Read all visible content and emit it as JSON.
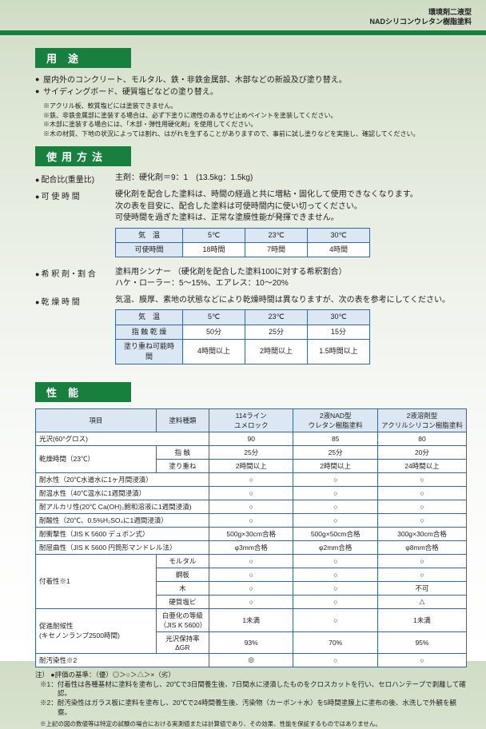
{
  "header": {
    "line1": "環境剤二液型",
    "line2": "NADシリコンウレタン樹脂塗料"
  },
  "sections": {
    "uses": {
      "title": "用途",
      "bullets": [
        "屋内外のコンクリート、モルタル、鉄・非鉄金属部、木部などの新設及び塗り替え。",
        "サイディングボード、硬質塩ビなどの塗り替え。"
      ],
      "notes": [
        "※アクリル板、軟質塩ビには塗装できません。",
        "※鉄、非鉄金属部に塗装する場合は、必ず下塗りに適性のあるサビ止めペイントを塗装してください。",
        "※木部に塗装する場合には、「木部・弾性用硬化剤」を使用してください。",
        "※木の材質、下地の状況によっては割れ、はがれを生ずることがありますので、事前に試し塗りなどを実施し、確認してください。"
      ]
    },
    "method": {
      "title": "使用方法",
      "ratio": {
        "label": "配合比(重量比)",
        "body": "主剤：硬化剤＝9：1　(13.5kg：1.5kg)"
      },
      "potlife": {
        "label": "可 使 時 間",
        "body1": "硬化剤を配合した塗料は、時間の経過と共に増粘・固化して使用できなくなります。",
        "body2": "次の表を目安に、配合した塗料は可使時間内に使い切ってください。",
        "body3": "可使時間を過ぎた塗料は、正常な塗膜性能が発揮できません。",
        "table": {
          "head": [
            "気　温",
            "5℃",
            "23℃",
            "30℃"
          ],
          "rows": [
            [
              "可使時間",
              "18時間",
              "7時間",
              "4時間"
            ]
          ]
        }
      },
      "thinner": {
        "label": "希 釈 剤・割 合",
        "body1": "塗料用シンナー （硬化剤を配合した塗料100に対する希釈割合）",
        "body2": "ハケ・ローラー：5～15%、エアレス：10～20%"
      },
      "dry": {
        "label": "乾 燥 時 間",
        "body": "気温、膜厚、素地の状態などにより乾燥時間は異なりますが、次の表を参考にしてください。",
        "table": {
          "head": [
            "気　温",
            "5℃",
            "23℃",
            "30℃"
          ],
          "rows": [
            [
              "指 触 乾 燥",
              "50分",
              "25分",
              "15分"
            ],
            [
              "塗り重ね可能時間",
              "4時間以上",
              "2時間以上",
              "1.5時間以上"
            ]
          ]
        }
      }
    },
    "perf": {
      "title": "性能",
      "header": {
        "item": "項目",
        "type": "塗料種類",
        "cols": [
          "114ライン\nユメロック",
          "2液NAD型\nウレタン樹脂塗料",
          "2液溶剤型\nアクリルシリコン樹脂塗料"
        ]
      },
      "rows": [
        {
          "label": "光沢(60°グロス)",
          "sub": null,
          "v": [
            "90",
            "85",
            "80"
          ]
        },
        {
          "label": "乾燥時間（23℃）",
          "sub": "指 触",
          "v": [
            "25分",
            "25分",
            "20分"
          ]
        },
        {
          "label": null,
          "sub": "塗り重ね",
          "v": [
            "2時間以上",
            "2時間以上",
            "24時間以上"
          ]
        },
        {
          "label": "耐水性（20℃水道水に1ヶ月間浸漬）",
          "sub": null,
          "v": [
            "○",
            "○",
            "○"
          ]
        },
        {
          "label": "耐温水性（40℃温水に1週間浸漬）",
          "sub": null,
          "v": [
            "○",
            "○",
            "○"
          ]
        },
        {
          "label": "耐アルカリ性(20℃ Ca(OH)₂飽和溶液に1週間浸漬)",
          "sub": null,
          "v": [
            "○",
            "○",
            "○"
          ]
        },
        {
          "label": "耐酸性（20℃、0.5%H₂SO₄に1週間浸漬）",
          "sub": null,
          "v": [
            "○",
            "○",
            "○"
          ]
        },
        {
          "label": "耐衝撃性（JIS K 5600 デュポン式）",
          "sub": null,
          "v": [
            "500g×30cm合格",
            "500g×50cm合格",
            "300g×30cm合格"
          ]
        },
        {
          "label": "耐屈曲性（JIS K 5600 円筒形マンドレル法）",
          "sub": null,
          "v": [
            "φ3mm合格",
            "φ2mm合格",
            "φ8mm合格"
          ]
        },
        {
          "label": "付着性※1",
          "sub": "モルタル",
          "v": [
            "○",
            "○",
            "○"
          ]
        },
        {
          "label": null,
          "sub": "鋼板",
          "v": [
            "○",
            "○",
            "○"
          ]
        },
        {
          "label": null,
          "sub": "木",
          "v": [
            "○",
            "○",
            "不可"
          ]
        },
        {
          "label": null,
          "sub": "硬質塩ビ",
          "v": [
            "○",
            "○",
            "△"
          ]
        },
        {
          "label": "促進耐候性\n(キセノンランプ2500時間)",
          "sub": "白亜化の等級（JIS K 5600）",
          "v": [
            "1未満",
            "○",
            "1未満"
          ]
        },
        {
          "label": null,
          "sub": "光沢保持率ΔGR",
          "v": [
            "93%",
            "70%",
            "95%"
          ]
        },
        {
          "label": "耐汚染性※2",
          "sub": null,
          "v": [
            "◎",
            "○",
            "○"
          ]
        }
      ],
      "legend": {
        "l0": "注） ●評価の基準：（優）◎＞○＞△＞×（劣）",
        "l1": "※1：付着性は各種基材に塗料を塗布し、20℃で3日間養生後、7日間水に浸漬したものをクロスカットを行い、セロハンテープで剥離して確認。",
        "l2": "※2：耐汚染性はガラス板に塗料を塗布し、20℃で24時間養生後、汚染物（カーボン＋水）を5時間塗膜上に塗布の後、水洗しで外観を観察。",
        "tiny": "※上記の図の数値等は特定の試験の場合における実測値または計算値であり、その効果、性能を保証するものではありません。"
      }
    }
  }
}
